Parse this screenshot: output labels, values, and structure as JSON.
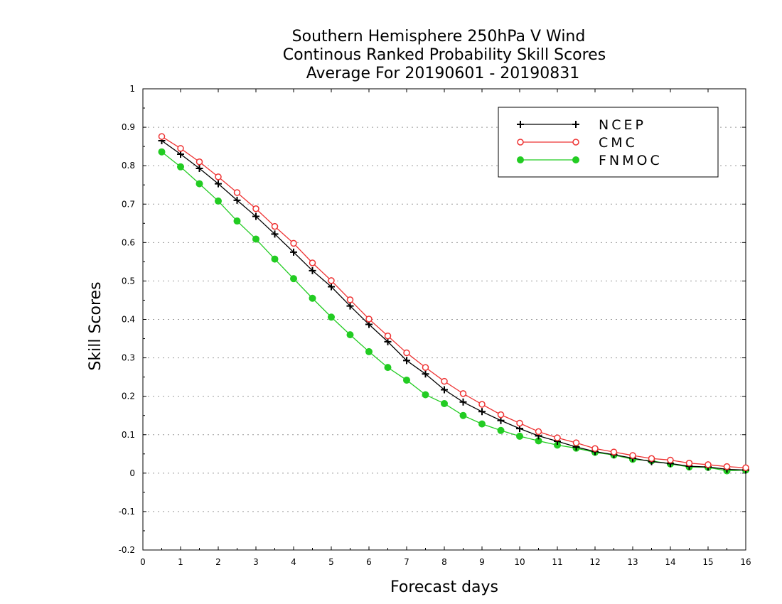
{
  "chart_data": {
    "type": "line",
    "title": [
      "Southern Hemisphere 250hPa V Wind",
      "Continous Ranked Probability Skill Scores",
      "Average For 20190601 - 20190831"
    ],
    "xlabel": "Forecast days",
    "ylabel": "Skill Scores",
    "xlim": [
      0,
      16
    ],
    "ylim": [
      -0.2,
      1
    ],
    "xticks": [
      "0",
      "1",
      "2",
      "3",
      "4",
      "5",
      "6",
      "7",
      "8",
      "9",
      "10",
      "11",
      "12",
      "13",
      "14",
      "15",
      "16"
    ],
    "yticks": [
      "-0.2",
      "-0.1",
      "0",
      "0.1",
      "0.2",
      "0.3",
      "0.4",
      "0.5",
      "0.6",
      "0.7",
      "0.8",
      "0.9",
      "1"
    ],
    "grid": "horizontal dotted",
    "legend_position": "top-right",
    "x": [
      0.5,
      1,
      1.5,
      2,
      2.5,
      3,
      3.5,
      4,
      4.5,
      5,
      5.5,
      6,
      6.5,
      7,
      7.5,
      8,
      8.5,
      9,
      9.5,
      10,
      10.5,
      11,
      11.5,
      12,
      12.5,
      13,
      13.5,
      14,
      14.5,
      15,
      15.5,
      16
    ],
    "series": [
      {
        "name": "NCEP",
        "color": "#000000",
        "marker": "plus",
        "values": [
          0.865,
          0.83,
          0.793,
          0.753,
          0.71,
          0.668,
          0.622,
          0.575,
          0.527,
          0.485,
          0.435,
          0.387,
          0.342,
          0.293,
          0.258,
          0.217,
          0.185,
          0.16,
          0.137,
          0.116,
          0.097,
          0.083,
          0.068,
          0.056,
          0.048,
          0.039,
          0.03,
          0.025,
          0.018,
          0.016,
          0.01,
          0.008
        ]
      },
      {
        "name": "CMC",
        "color": "#ee3333",
        "marker": "open-circle",
        "values": [
          0.876,
          0.845,
          0.81,
          0.771,
          0.73,
          0.688,
          0.642,
          0.598,
          0.547,
          0.501,
          0.451,
          0.401,
          0.357,
          0.313,
          0.275,
          0.239,
          0.207,
          0.179,
          0.152,
          0.13,
          0.108,
          0.092,
          0.079,
          0.064,
          0.055,
          0.046,
          0.038,
          0.034,
          0.026,
          0.022,
          0.017,
          0.014
        ]
      },
      {
        "name": "FNMOC",
        "color": "#22cc22",
        "marker": "filled-circle",
        "values": [
          0.836,
          0.797,
          0.753,
          0.708,
          0.656,
          0.609,
          0.557,
          0.506,
          0.455,
          0.406,
          0.36,
          0.316,
          0.275,
          0.242,
          0.204,
          0.181,
          0.15,
          0.128,
          0.111,
          0.096,
          0.084,
          0.073,
          0.065,
          0.054,
          0.047,
          0.036,
          0.032,
          0.024,
          0.016,
          0.015,
          0.006,
          0.008
        ]
      }
    ]
  }
}
